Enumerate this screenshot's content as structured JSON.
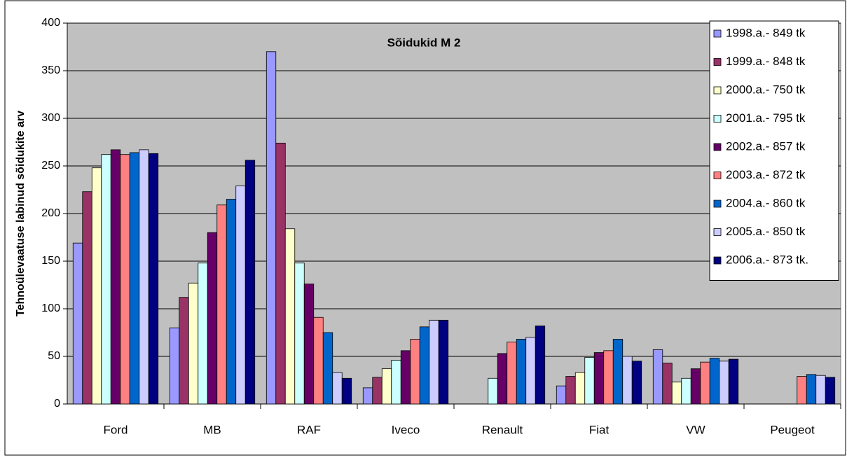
{
  "chart_data": {
    "type": "bar",
    "title": "Sõidukid M 2",
    "y_label": "Tehnoülevaatuse labinud sõidukite arv",
    "categories": [
      "Ford",
      "MB",
      "RAF",
      "Iveco",
      "Renault",
      "Fiat",
      "VW",
      "Peugeot"
    ],
    "series": [
      {
        "name": "1998.a.- 849 tk",
        "color": "#9999ff",
        "values": [
          169,
          80,
          370,
          17,
          null,
          19,
          57,
          null
        ]
      },
      {
        "name": "1999.a.- 848 tk",
        "color": "#993366",
        "values": [
          223,
          112,
          274,
          28,
          null,
          29,
          43,
          null
        ]
      },
      {
        "name": "2000.a.- 750 tk",
        "color": "#ffffcc",
        "values": [
          248,
          127,
          184,
          37,
          null,
          33,
          23,
          null
        ]
      },
      {
        "name": "2001.a.- 795 tk",
        "color": "#ccffff",
        "values": [
          262,
          148,
          148,
          46,
          27,
          49,
          27,
          null
        ]
      },
      {
        "name": "2002.a.- 857 tk",
        "color": "#660066",
        "values": [
          267,
          180,
          126,
          56,
          53,
          54,
          37,
          null
        ]
      },
      {
        "name": "2003.a.- 872 tk",
        "color": "#ff8080",
        "values": [
          262,
          209,
          91,
          68,
          65,
          56,
          44,
          29
        ]
      },
      {
        "name": "2004.a.- 860 tk",
        "color": "#0066cc",
        "values": [
          264,
          215,
          75,
          81,
          68,
          68,
          48,
          31
        ]
      },
      {
        "name": "2005.a.- 850 tk",
        "color": "#ccccff",
        "values": [
          267,
          229,
          33,
          88,
          70,
          50,
          45,
          30
        ]
      },
      {
        "name": "2006.a.- 873 tk.",
        "color": "#000080",
        "values": [
          263,
          256,
          27,
          88,
          82,
          45,
          47,
          28
        ]
      }
    ],
    "ylim": [
      0,
      400
    ],
    "yticks": [
      0,
      50,
      100,
      150,
      200,
      250,
      300,
      350,
      400
    ],
    "grid": true,
    "legend": "right",
    "plot_background": "#c0c0c0"
  }
}
